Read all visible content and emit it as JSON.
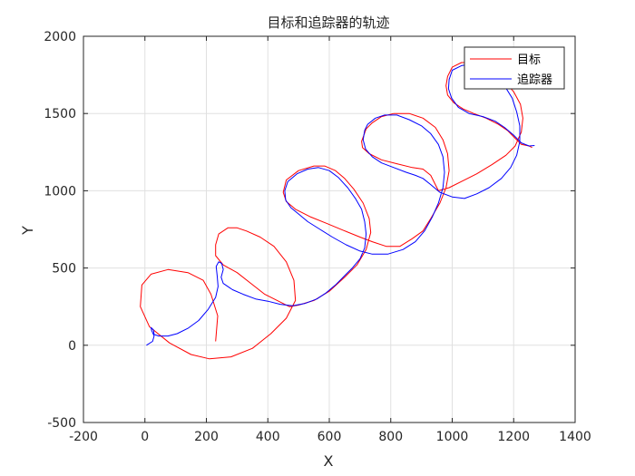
{
  "chart_data": {
    "type": "line",
    "title": "目标和追踪器的轨迹",
    "xlabel": "X",
    "ylabel": "Y",
    "xlim": [
      -200,
      1400
    ],
    "ylim": [
      -500,
      2000
    ],
    "xticks": [
      -200,
      0,
      200,
      400,
      600,
      800,
      1000,
      1200,
      1400
    ],
    "yticks": [
      -500,
      0,
      500,
      1000,
      1500,
      2000
    ],
    "grid": true,
    "legend": {
      "position": "top-right"
    },
    "colors": {
      "target": "#ff0000",
      "tracker": "#0000ff",
      "grid": "#e0e0e0",
      "axis": "#262626"
    },
    "series": [
      {
        "name": "目标",
        "color": "#ff0000",
        "points": [
          [
            230,
            25
          ],
          [
            237,
            190
          ],
          [
            215,
            330
          ],
          [
            190,
            420
          ],
          [
            140,
            470
          ],
          [
            75,
            490
          ],
          [
            20,
            460
          ],
          [
            -10,
            390
          ],
          [
            -15,
            250
          ],
          [
            15,
            120
          ],
          [
            80,
            15
          ],
          [
            150,
            -60
          ],
          [
            210,
            -88
          ],
          [
            280,
            -75
          ],
          [
            350,
            -20
          ],
          [
            410,
            75
          ],
          [
            460,
            175
          ],
          [
            490,
            290
          ],
          [
            485,
            420
          ],
          [
            460,
            540
          ],
          [
            420,
            640
          ],
          [
            375,
            700
          ],
          [
            330,
            740
          ],
          [
            300,
            760
          ],
          [
            270,
            760
          ],
          [
            240,
            720
          ],
          [
            230,
            650
          ],
          [
            230,
            580
          ],
          [
            255,
            520
          ],
          [
            300,
            470
          ],
          [
            345,
            400
          ],
          [
            390,
            330
          ],
          [
            440,
            280
          ],
          [
            470,
            250
          ],
          [
            500,
            260
          ],
          [
            550,
            290
          ],
          [
            600,
            350
          ],
          [
            650,
            440
          ],
          [
            690,
            520
          ],
          [
            720,
            620
          ],
          [
            735,
            730
          ],
          [
            730,
            820
          ],
          [
            710,
            920
          ],
          [
            680,
            1010
          ],
          [
            650,
            1080
          ],
          [
            620,
            1130
          ],
          [
            585,
            1160
          ],
          [
            550,
            1160
          ],
          [
            500,
            1130
          ],
          [
            460,
            1070
          ],
          [
            450,
            990
          ],
          [
            460,
            930
          ],
          [
            490,
            880
          ],
          [
            540,
            830
          ],
          [
            590,
            790
          ],
          [
            645,
            745
          ],
          [
            700,
            700
          ],
          [
            740,
            670
          ],
          [
            785,
            640
          ],
          [
            830,
            640
          ],
          [
            870,
            690
          ],
          [
            905,
            740
          ],
          [
            930,
            820
          ],
          [
            960,
            920
          ],
          [
            980,
            1020
          ],
          [
            990,
            1130
          ],
          [
            985,
            1240
          ],
          [
            970,
            1330
          ],
          [
            945,
            1410
          ],
          [
            905,
            1470
          ],
          [
            860,
            1500
          ],
          [
            810,
            1500
          ],
          [
            770,
            1480
          ],
          [
            740,
            1440
          ],
          [
            720,
            1400
          ],
          [
            705,
            1320
          ],
          [
            708,
            1280
          ],
          [
            730,
            1240
          ],
          [
            770,
            1200
          ],
          [
            820,
            1175
          ],
          [
            870,
            1150
          ],
          [
            905,
            1140
          ],
          [
            930,
            1100
          ],
          [
            955,
            1000
          ],
          [
            990,
            1020
          ],
          [
            1030,
            1060
          ],
          [
            1080,
            1110
          ],
          [
            1130,
            1170
          ],
          [
            1175,
            1230
          ],
          [
            1205,
            1290
          ],
          [
            1225,
            1380
          ],
          [
            1230,
            1470
          ],
          [
            1222,
            1560
          ],
          [
            1200,
            1640
          ],
          [
            1165,
            1720
          ],
          [
            1120,
            1790
          ],
          [
            1075,
            1830
          ],
          [
            1030,
            1830
          ],
          [
            1000,
            1800
          ],
          [
            985,
            1740
          ],
          [
            980,
            1680
          ],
          [
            985,
            1620
          ],
          [
            1005,
            1570
          ],
          [
            1035,
            1530
          ],
          [
            1070,
            1500
          ],
          [
            1110,
            1470
          ],
          [
            1150,
            1430
          ],
          [
            1180,
            1390
          ],
          [
            1205,
            1340
          ],
          [
            1225,
            1300
          ],
          [
            1250,
            1290
          ],
          [
            1260,
            1280
          ]
        ]
      },
      {
        "name": "追踪器",
        "color": "#0000ff",
        "points": [
          [
            5,
            0
          ],
          [
            25,
            25
          ],
          [
            30,
            60
          ],
          [
            22,
            95
          ],
          [
            20,
            115
          ],
          [
            28,
            100
          ],
          [
            30,
            70
          ],
          [
            45,
            60
          ],
          [
            75,
            60
          ],
          [
            105,
            75
          ],
          [
            140,
            110
          ],
          [
            175,
            160
          ],
          [
            205,
            230
          ],
          [
            230,
            310
          ],
          [
            238,
            380
          ],
          [
            235,
            450
          ],
          [
            232,
            510
          ],
          [
            240,
            540
          ],
          [
            250,
            530
          ],
          [
            255,
            490
          ],
          [
            248,
            440
          ],
          [
            255,
            400
          ],
          [
            285,
            360
          ],
          [
            320,
            330
          ],
          [
            360,
            300
          ],
          [
            400,
            285
          ],
          [
            440,
            265
          ],
          [
            480,
            255
          ],
          [
            520,
            270
          ],
          [
            560,
            300
          ],
          [
            590,
            340
          ],
          [
            620,
            390
          ],
          [
            650,
            450
          ],
          [
            675,
            500
          ],
          [
            700,
            560
          ],
          [
            715,
            630
          ],
          [
            720,
            720
          ],
          [
            715,
            800
          ],
          [
            705,
            880
          ],
          [
            685,
            950
          ],
          [
            660,
            1020
          ],
          [
            630,
            1085
          ],
          [
            600,
            1130
          ],
          [
            565,
            1150
          ],
          [
            530,
            1140
          ],
          [
            495,
            1110
          ],
          [
            465,
            1060
          ],
          [
            455,
            1000
          ],
          [
            458,
            940
          ],
          [
            475,
            890
          ],
          [
            500,
            850
          ],
          [
            530,
            800
          ],
          [
            570,
            750
          ],
          [
            610,
            700
          ],
          [
            655,
            650
          ],
          [
            700,
            610
          ],
          [
            740,
            590
          ],
          [
            790,
            590
          ],
          [
            840,
            620
          ],
          [
            880,
            670
          ],
          [
            910,
            740
          ],
          [
            935,
            830
          ],
          [
            955,
            920
          ],
          [
            970,
            1020
          ],
          [
            975,
            1120
          ],
          [
            970,
            1220
          ],
          [
            955,
            1300
          ],
          [
            930,
            1370
          ],
          [
            900,
            1420
          ],
          [
            860,
            1460
          ],
          [
            820,
            1490
          ],
          [
            780,
            1490
          ],
          [
            750,
            1470
          ],
          [
            725,
            1430
          ],
          [
            715,
            1390
          ],
          [
            710,
            1330
          ],
          [
            718,
            1270
          ],
          [
            740,
            1220
          ],
          [
            770,
            1180
          ],
          [
            810,
            1150
          ],
          [
            850,
            1120
          ],
          [
            880,
            1100
          ],
          [
            905,
            1080
          ],
          [
            930,
            1040
          ],
          [
            960,
            990
          ],
          [
            1000,
            960
          ],
          [
            1040,
            950
          ],
          [
            1080,
            980
          ],
          [
            1120,
            1020
          ],
          [
            1160,
            1080
          ],
          [
            1190,
            1150
          ],
          [
            1210,
            1230
          ],
          [
            1220,
            1320
          ],
          [
            1220,
            1420
          ],
          [
            1210,
            1510
          ],
          [
            1195,
            1600
          ],
          [
            1170,
            1680
          ],
          [
            1140,
            1750
          ],
          [
            1100,
            1800
          ],
          [
            1060,
            1820
          ],
          [
            1030,
            1810
          ],
          [
            1000,
            1780
          ],
          [
            990,
            1720
          ],
          [
            988,
            1660
          ],
          [
            998,
            1600
          ],
          [
            1020,
            1540
          ],
          [
            1055,
            1500
          ],
          [
            1100,
            1480
          ],
          [
            1140,
            1450
          ],
          [
            1170,
            1410
          ],
          [
            1200,
            1360
          ],
          [
            1225,
            1310
          ],
          [
            1250,
            1290
          ],
          [
            1268,
            1293
          ]
        ]
      }
    ]
  }
}
